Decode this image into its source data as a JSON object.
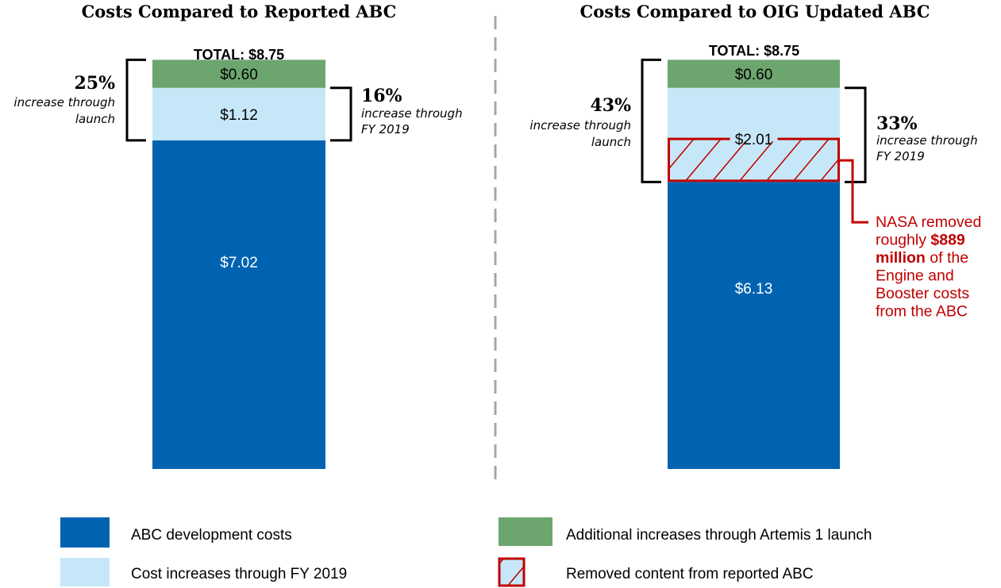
{
  "chart_data": {
    "type": "bar",
    "stacked": true,
    "units": "billions of dollars",
    "grid": false,
    "legend_position": "bottom",
    "colors": {
      "abc_development": "#0063b1",
      "cost_increases_fy2019": "#c6e7f8",
      "additional_increases_launch": "#6da56f",
      "removed_hatch": "#c00000",
      "divider": "#a6a6a6",
      "bracket": "#000000"
    },
    "panels": [
      {
        "title": "Costs Compared to Reported ABC",
        "total_label": "TOTAL:  $8.75",
        "total": 8.75,
        "segments": [
          {
            "key": "abc_development",
            "value": 7.02,
            "label": "$7.02"
          },
          {
            "key": "cost_increases_fy2019",
            "value": 1.12,
            "label": "$1.12"
          },
          {
            "key": "additional_increases_launch",
            "value": 0.6,
            "label": "$0.60"
          }
        ],
        "left_annotation": {
          "percent": "25%",
          "line1": "increase through",
          "line2": "launch"
        },
        "right_annotation": {
          "percent": "16%",
          "line1": "increase through",
          "line2": "FY 2019"
        }
      },
      {
        "title": "Costs Compared to OIG Updated ABC",
        "total_label": "TOTAL:  $8.75",
        "total": 8.75,
        "segments": [
          {
            "key": "abc_development",
            "value": 6.13,
            "label": "$6.13"
          },
          {
            "key": "cost_increases_fy2019",
            "value": 2.01,
            "label": "$2.01",
            "removed_portion": 0.889
          },
          {
            "key": "additional_increases_launch",
            "value": 0.6,
            "label": "$0.60"
          }
        ],
        "left_annotation": {
          "percent": "43%",
          "line1": "increase through",
          "line2": "launch"
        },
        "right_annotation": {
          "percent": "33%",
          "line1": "increase through",
          "line2": "FY 2019"
        },
        "note": {
          "lines": [
            [
              {
                "text": "NASA removed",
                "bold": false
              }
            ],
            [
              {
                "text": "roughly ",
                "bold": false
              },
              {
                "text": "$889",
                "bold": true
              }
            ],
            [
              {
                "text": "million",
                "bold": true
              },
              {
                "text": " of the",
                "bold": false
              }
            ],
            [
              {
                "text": "Engine and",
                "bold": false
              }
            ],
            [
              {
                "text": "Booster costs",
                "bold": false
              }
            ],
            [
              {
                "text": "from the ABC",
                "bold": false
              }
            ]
          ]
        }
      }
    ],
    "legend": [
      {
        "key": "abc_development",
        "label": "ABC development costs"
      },
      {
        "key": "additional_increases_launch",
        "label": "Additional increases through Artemis 1 launch"
      },
      {
        "key": "cost_increases_fy2019",
        "label": "Cost increases through FY 2019"
      },
      {
        "key": "removed_hatch",
        "label": "Removed content from reported ABC"
      }
    ]
  }
}
